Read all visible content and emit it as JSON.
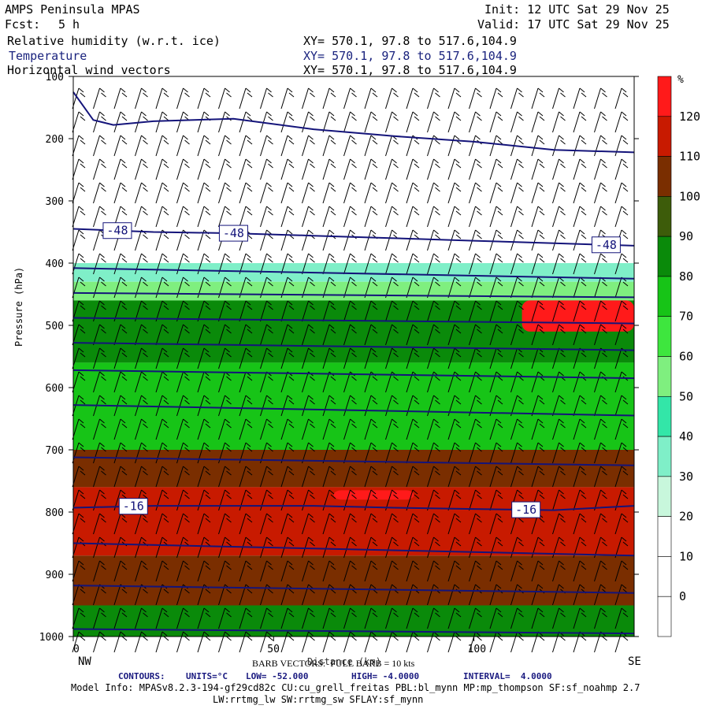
{
  "header": {
    "product": "AMPS Peninsula MPAS",
    "forecast_label": "Fcst:",
    "forecast_value": "5 h",
    "init": "Init: 12 UTC Sat 29 Nov 25",
    "valid": "Valid: 17 UTC Sat 29 Nov 25",
    "fields": [
      {
        "name": "Relative humidity (w.r.t. ice)",
        "xy": "XY= 570.1, 97.8 to 517.6,104.9"
      },
      {
        "name": "Temperature",
        "xy": "XY= 570.1, 97.8 to 517.6,104.9"
      },
      {
        "name": "Horizontal wind vectors",
        "xy": "XY= 570.1, 97.8 to 517.6,104.9"
      }
    ]
  },
  "colors": {
    "temp_contour": "#14147a",
    "rh_bins": [
      "#ffffff",
      "#ffffff",
      "#ffffff",
      "#ffffff",
      "#c8f7dc",
      "#7fefc8",
      "#33e6a8",
      "#7fef7f",
      "#3ee63e",
      "#17c417",
      "#0a8a0a",
      "#3d5c0a",
      "#7a2e00",
      "#c81a00",
      "#ff1a1a"
    ]
  },
  "footer": {
    "barb": "BARB VECTORS:  FULL BARB = 10 kts",
    "contours_label": "CONTOURS:",
    "units": "UNITS=°C",
    "low": "LOW= -52.000",
    "high": "HIGH= -4.0000",
    "interval": "INTERVAL=  4.0000",
    "model_info": "Model Info: MPASv8.2.3-194-gf29cd82c CU:cu_grell_freitas PBL:bl_mynn MP:mp_thompson SF:sf_noahmp 2.7",
    "model_info2": "LW:rrtmg_lw SW:rrtmg_sw SFLAY:sf_mynn"
  },
  "chart_data": {
    "type": "heatmap",
    "title": "Relative humidity (w.r.t. ice) / Temperature / Horizontal wind vectors — cross section",
    "xlabel": "Distance (km)",
    "ylabel": "Pressure (hPa)",
    "x_range": [
      0,
      140
    ],
    "y_range": [
      1000,
      100
    ],
    "x_ticks": [
      0,
      50,
      100
    ],
    "y_ticks": [
      100,
      200,
      300,
      400,
      500,
      600,
      700,
      800,
      900,
      1000
    ],
    "x_end_labels": {
      "left": "NW",
      "right": "SE"
    },
    "colorbar": {
      "unit": "%",
      "levels": [
        0,
        10,
        20,
        30,
        40,
        50,
        60,
        70,
        80,
        90,
        100,
        110,
        120
      ],
      "labels": [
        "0",
        "10",
        "20",
        "30",
        "40",
        "50",
        "60",
        "70",
        "80",
        "90",
        "100",
        "110",
        "120"
      ]
    },
    "rh_layers": [
      {
        "p_top": 400,
        "p_bottom": 430,
        "rh": 30
      },
      {
        "p_top": 430,
        "p_bottom": 460,
        "rh": 55
      },
      {
        "p_top": 460,
        "p_bottom": 560,
        "rh": 85
      },
      {
        "p_top": 560,
        "p_bottom": 700,
        "rh": 75
      },
      {
        "p_top": 700,
        "p_bottom": 760,
        "rh": 105
      },
      {
        "p_top": 760,
        "p_bottom": 870,
        "rh": 115
      },
      {
        "p_top": 870,
        "p_bottom": 950,
        "rh": 100
      },
      {
        "p_top": 950,
        "p_bottom": 1000,
        "rh": 80
      }
    ],
    "rh_patches": [
      {
        "x0": 112,
        "x1": 140,
        "p_top": 460,
        "p_bottom": 510,
        "rh": 125
      },
      {
        "x0": 65,
        "x1": 85,
        "p_top": 765,
        "p_bottom": 780,
        "rh": 125
      }
    ],
    "temperature_contours": [
      {
        "label": "-48",
        "x": [
          0,
          20,
          40,
          60,
          80,
          100,
          120,
          140
        ],
        "p": [
          345,
          350,
          352,
          356,
          360,
          364,
          368,
          372
        ],
        "label_positions": [
          11,
          40,
          133
        ]
      },
      {
        "label": "-16",
        "x": [
          0,
          20,
          40,
          60,
          80,
          100,
          120,
          140
        ],
        "p": [
          793,
          790,
          790,
          790,
          793,
          795,
          797,
          790
        ],
        "label_positions": [
          15,
          113
        ]
      },
      {
        "label": "",
        "x": [
          0,
          140
        ],
        "p": [
          408,
          425
        ]
      },
      {
        "label": "",
        "x": [
          0,
          140
        ],
        "p": [
          448,
          455
        ]
      },
      {
        "label": "",
        "x": [
          0,
          140
        ],
        "p": [
          488,
          497
        ]
      },
      {
        "label": "",
        "x": [
          0,
          140
        ],
        "p": [
          528,
          540
        ]
      },
      {
        "label": "",
        "x": [
          0,
          140
        ],
        "p": [
          572,
          585
        ]
      },
      {
        "label": "",
        "x": [
          0,
          140
        ],
        "p": [
          628,
          645
        ]
      },
      {
        "label": "",
        "x": [
          0,
          140
        ],
        "p": [
          712,
          725
        ]
      },
      {
        "label": "",
        "x": [
          0,
          140
        ],
        "p": [
          850,
          870
        ]
      },
      {
        "label": "",
        "x": [
          0,
          140
        ],
        "p": [
          918,
          930
        ]
      },
      {
        "label": "",
        "x": [
          0,
          140
        ],
        "p": [
          988,
          995
        ]
      },
      {
        "label": "",
        "x": [
          0,
          5,
          10,
          20,
          40,
          60,
          80,
          100,
          120,
          140
        ],
        "p": [
          125,
          170,
          178,
          172,
          168,
          185,
          196,
          205,
          218,
          222
        ]
      }
    ]
  }
}
